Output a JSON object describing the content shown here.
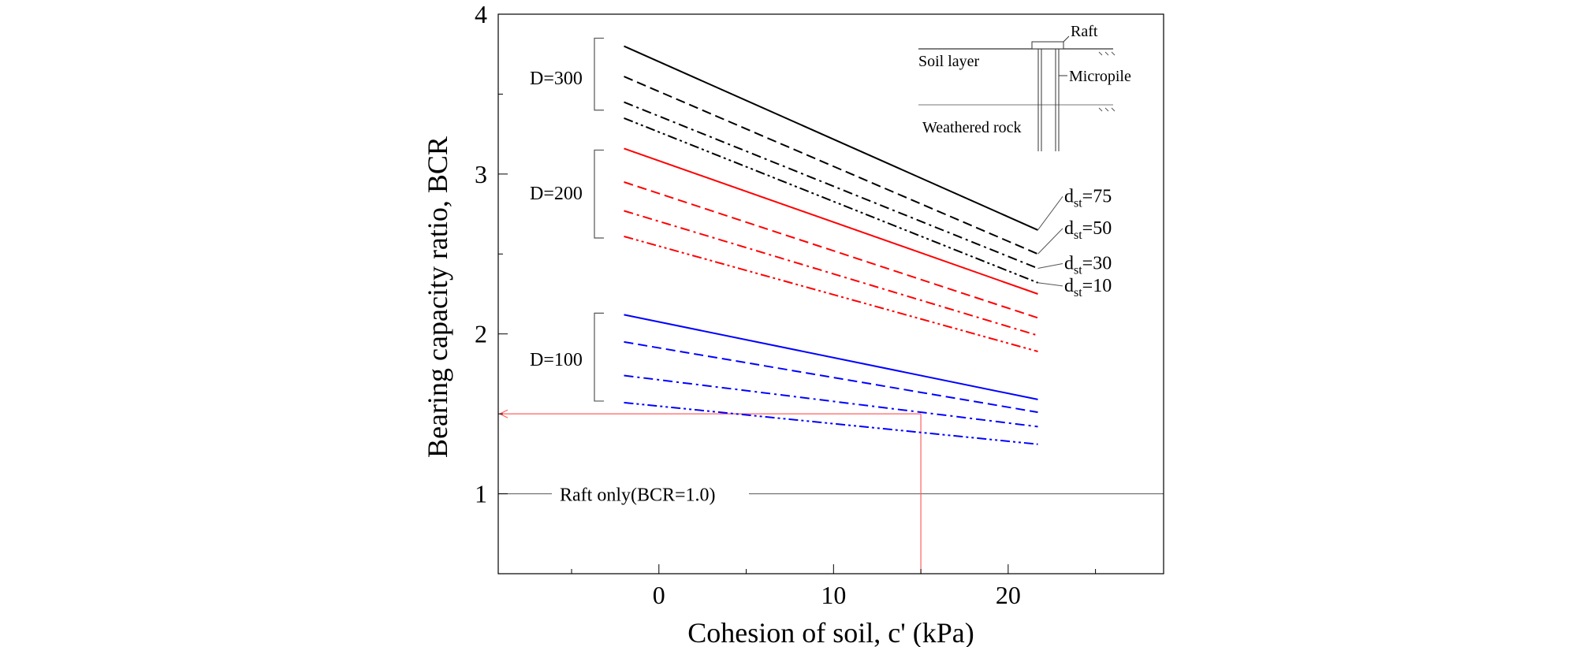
{
  "chart_data": {
    "type": "line",
    "title": "",
    "xlabel": "Cohesion of soil, c' (kPa)",
    "ylabel": "Bearing capacity ratio, BCR",
    "xlim": [
      -9.2,
      28.9
    ],
    "ylim": [
      0.5,
      4.0
    ],
    "xticks": [
      0,
      10,
      20
    ],
    "yticks": [
      1,
      2,
      3,
      4
    ],
    "grid": false,
    "reference_line": {
      "label": "Raft only(BCR=1.0)",
      "y": 1.0
    },
    "guide_lines": {
      "x": 15,
      "y": 1.5,
      "color": "#ff6060"
    },
    "group_labels": [
      {
        "text": "D=300",
        "bracket": [
          3.4,
          3.85
        ],
        "y": 3.6
      },
      {
        "text": "D=200",
        "bracket": [
          2.6,
          3.15
        ],
        "y": 2.88
      },
      {
        "text": "D=100",
        "bracket": [
          1.58,
          2.13
        ],
        "y": 1.84
      }
    ],
    "dst_labels": [
      {
        "prefix": "d",
        "sub": "st",
        "suffix": "=75",
        "y": 2.84,
        "series": 0
      },
      {
        "prefix": "d",
        "sub": "st",
        "suffix": "=50",
        "y": 2.64,
        "series": 1
      },
      {
        "prefix": "d",
        "sub": "st",
        "suffix": "=30",
        "y": 2.42,
        "series": 2
      },
      {
        "prefix": "d",
        "sub": "st",
        "suffix": "=10",
        "y": 2.28,
        "series": 3
      }
    ],
    "series": [
      {
        "group": "D=300",
        "dst": "75",
        "color": "#000000",
        "dash": "solid",
        "x": [
          -2,
          21.7
        ],
        "values": [
          3.8,
          2.65
        ]
      },
      {
        "group": "D=300",
        "dst": "50",
        "color": "#000000",
        "dash": "dash",
        "x": [
          -2,
          21.7
        ],
        "values": [
          3.61,
          2.5
        ]
      },
      {
        "group": "D=300",
        "dst": "30",
        "color": "#000000",
        "dash": "dashdot",
        "x": [
          -2,
          21.7
        ],
        "values": [
          3.45,
          2.41
        ]
      },
      {
        "group": "D=300",
        "dst": "10",
        "color": "#000000",
        "dash": "dashdotdot",
        "x": [
          -2,
          21.7
        ],
        "values": [
          3.35,
          2.32
        ]
      },
      {
        "group": "D=200",
        "dst": "75",
        "color": "#ff0000",
        "dash": "solid",
        "x": [
          -2,
          21.7
        ],
        "values": [
          3.16,
          2.25
        ]
      },
      {
        "group": "D=200",
        "dst": "50",
        "color": "#ff0000",
        "dash": "dash",
        "x": [
          -2,
          21.7
        ],
        "values": [
          2.95,
          2.1
        ]
      },
      {
        "group": "D=200",
        "dst": "30",
        "color": "#ff0000",
        "dash": "dashdot",
        "x": [
          -2,
          21.7
        ],
        "values": [
          2.77,
          1.99
        ]
      },
      {
        "group": "D=200",
        "dst": "10",
        "color": "#ff0000",
        "dash": "dashdotdot",
        "x": [
          -2,
          21.7
        ],
        "values": [
          2.61,
          1.89
        ]
      },
      {
        "group": "D=100",
        "dst": "75",
        "color": "#0000ff",
        "dash": "solid",
        "x": [
          -2,
          21.7
        ],
        "values": [
          2.12,
          1.59
        ]
      },
      {
        "group": "D=100",
        "dst": "50",
        "color": "#0000ff",
        "dash": "dash",
        "x": [
          -2,
          21.7
        ],
        "values": [
          1.95,
          1.51
        ]
      },
      {
        "group": "D=100",
        "dst": "30",
        "color": "#0000ff",
        "dash": "dashdot",
        "x": [
          -2,
          21.7
        ],
        "values": [
          1.74,
          1.42
        ]
      },
      {
        "group": "D=100",
        "dst": "10",
        "color": "#0000ff",
        "dash": "dashdotdot",
        "x": [
          -2,
          21.7
        ],
        "values": [
          1.57,
          1.31
        ]
      }
    ]
  },
  "inset": {
    "raft": "Raft",
    "soil_layer": "Soil layer",
    "micropile": "Micropile",
    "weathered_rock": "Weathered rock"
  }
}
